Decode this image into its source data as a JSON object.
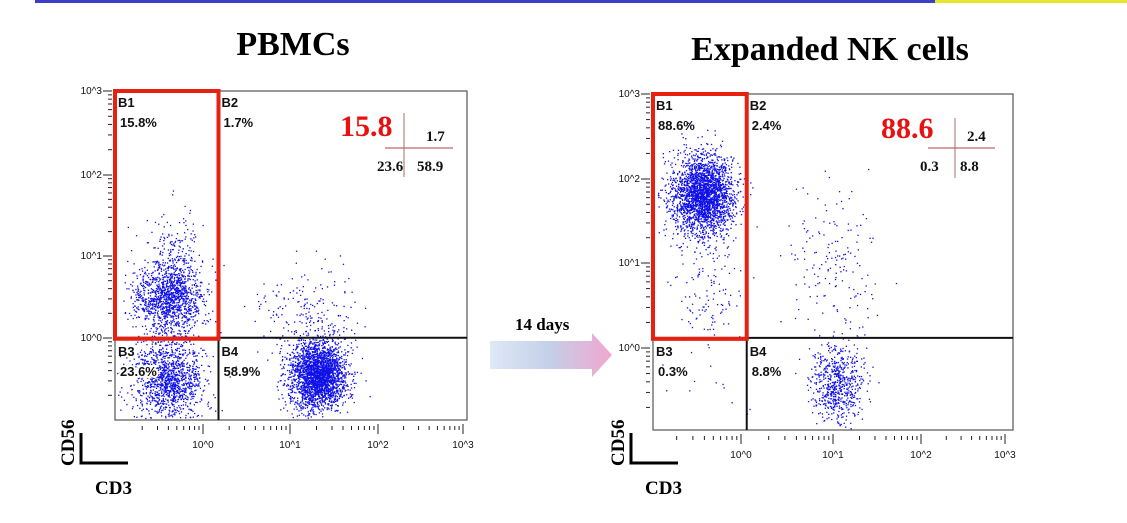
{
  "colors": {
    "top_bar": "#3a3fc4",
    "top_bar_accent": "#e6e62a",
    "points": "#1010e8",
    "gate": "#e82010",
    "summary_big": "#e81010"
  },
  "arrow_label": "14 days",
  "chart_data": [
    {
      "type": "scatter",
      "title": "PBMCs",
      "xlabel": "CD3",
      "ylabel": "CD56",
      "xscale": "log",
      "yscale": "log",
      "xlim_log10": [
        -1,
        3
      ],
      "ylim_log10": [
        -1,
        3
      ],
      "x_ticks": [
        "10^0",
        "10^1",
        "10^2",
        "10^3"
      ],
      "y_ticks": [
        "10^0",
        "10^1",
        "10^2",
        "10^3"
      ],
      "quadrant_divider": {
        "x": 1.5,
        "y": 1.0
      },
      "gate": "B1",
      "quadrants": [
        {
          "name": "B1",
          "percent": "15.8%"
        },
        {
          "name": "B2",
          "percent": "1.7%"
        },
        {
          "name": "B3",
          "percent": "23.6%"
        },
        {
          "name": "B4",
          "percent": "58.9%"
        }
      ],
      "summary": {
        "b1": "15.8",
        "b2": "1.7",
        "b3": "23.6",
        "b4": "58.9"
      },
      "clusters_log10": [
        {
          "cx": -0.4,
          "cy": 0.5,
          "sx": 0.2,
          "sy": 0.22,
          "n": 1300
        },
        {
          "cx": -0.35,
          "cy": 1.1,
          "sx": 0.15,
          "sy": 0.25,
          "n": 120
        },
        {
          "cx": -0.4,
          "cy": -0.5,
          "sx": 0.2,
          "sy": 0.25,
          "n": 1300
        },
        {
          "cx": 1.3,
          "cy": -0.45,
          "sx": 0.16,
          "sy": 0.22,
          "n": 2600
        },
        {
          "cx": 1.2,
          "cy": 0.35,
          "sx": 0.3,
          "sy": 0.25,
          "n": 160
        }
      ]
    },
    {
      "type": "scatter",
      "title": "Expanded NK cells",
      "xlabel": "CD3",
      "ylabel": "CD56",
      "xscale": "log",
      "yscale": "log",
      "xlim_log10": [
        -1,
        3
      ],
      "ylim_log10": [
        -1,
        3
      ],
      "x_ticks": [
        "10^0",
        "10^1",
        "10^2",
        "10^3"
      ],
      "y_ticks": [
        "10^0",
        "10^1",
        "10^2",
        "10^3"
      ],
      "quadrant_divider": {
        "x": 1.1,
        "y": 1.25
      },
      "gate": "B1",
      "quadrants": [
        {
          "name": "B1",
          "percent": "88.6%"
        },
        {
          "name": "B2",
          "percent": "2.4%"
        },
        {
          "name": "B3",
          "percent": "0.3%"
        },
        {
          "name": "B4",
          "percent": "8.8%"
        }
      ],
      "summary": {
        "b1": "88.6",
        "b2": "2.4",
        "b3": "0.3",
        "b4": "8.8"
      },
      "clusters_log10": [
        {
          "cx": -0.45,
          "cy": 1.8,
          "sx": 0.17,
          "sy": 0.24,
          "n": 2600
        },
        {
          "cx": -0.4,
          "cy": 0.6,
          "sx": 0.18,
          "sy": 0.3,
          "n": 110
        },
        {
          "cx": 1.0,
          "cy": 1.0,
          "sx": 0.25,
          "sy": 0.45,
          "n": 160
        },
        {
          "cx": 1.05,
          "cy": -0.45,
          "sx": 0.14,
          "sy": 0.24,
          "n": 650
        },
        {
          "cx": -0.3,
          "cy": -0.4,
          "sx": 0.3,
          "sy": 0.3,
          "n": 12
        }
      ]
    }
  ]
}
